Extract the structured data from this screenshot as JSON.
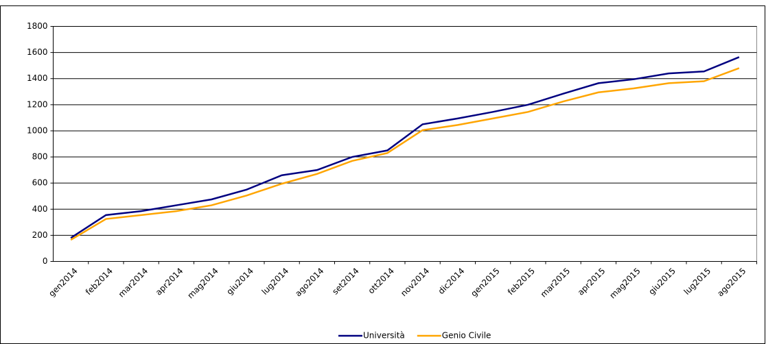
{
  "chart_data": {
    "type": "line",
    "categories": [
      "gen2014",
      "feb2014",
      "mar2014",
      "apr2014",
      "mag2014",
      "giu2014",
      "lug2014",
      "ago2014",
      "set2014",
      "ott2014",
      "nov2014",
      "dic2014",
      "gen2015",
      "feb2015",
      "mar2015",
      "apr2015",
      "mag2015",
      "giu2015",
      "lug2015",
      "ago2015"
    ],
    "series": [
      {
        "name": "Università",
        "color": "#000080",
        "values": [
          180,
          355,
          385,
          430,
          475,
          550,
          660,
          700,
          800,
          850,
          1050,
          1095,
          1145,
          1200,
          1285,
          1365,
          1395,
          1440,
          1455,
          1565
        ]
      },
      {
        "name": "Genio Civile",
        "color": "#ffa500",
        "values": [
          165,
          325,
          355,
          385,
          430,
          505,
          595,
          670,
          770,
          830,
          1005,
          1045,
          1095,
          1145,
          1225,
          1295,
          1325,
          1365,
          1380,
          1480
        ]
      }
    ],
    "ylim": [
      0,
      1800
    ],
    "yticks": [
      0,
      200,
      400,
      600,
      800,
      1000,
      1200,
      1400,
      1600,
      1800
    ],
    "grid": true,
    "legend": "bottom"
  }
}
